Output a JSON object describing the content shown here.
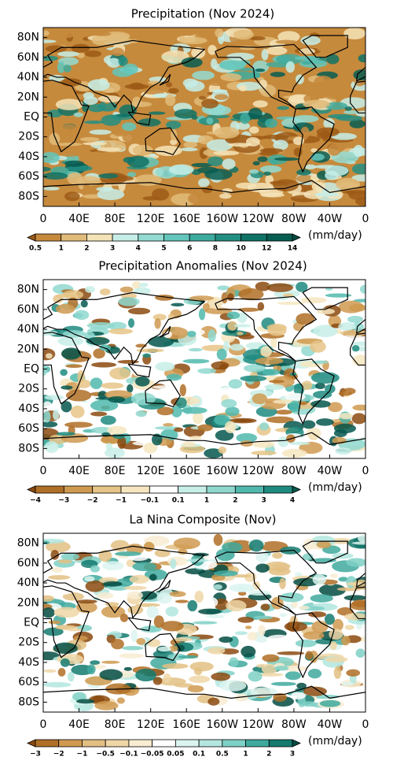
{
  "axes": {
    "lat_labels": [
      "80N",
      "60N",
      "40N",
      "20N",
      "EQ",
      "20S",
      "40S",
      "60S",
      "80S"
    ],
    "lon_labels": [
      "0",
      "40E",
      "80E",
      "120E",
      "160E",
      "160W",
      "120W",
      "80W",
      "40W",
      "0"
    ],
    "units": "(mm/day)"
  },
  "panels": [
    {
      "title": "Precipitation (Nov 2024)",
      "colorbar_labels": [
        "0.5",
        "1",
        "2",
        "3",
        "4",
        "5",
        "6",
        "8",
        "10",
        "12",
        "14"
      ],
      "colorbar_colors": [
        "#9c5a16",
        "#c68a3d",
        "#e0bb79",
        "#f4e3b7",
        "#c6ede7",
        "#93dbd2",
        "#63c5bb",
        "#3eab9f",
        "#238e82",
        "#117266",
        "#075d52",
        "#024b41"
      ]
    },
    {
      "title": "Precipitation Anomalies (Nov 2024)",
      "colorbar_labels": [
        "−4",
        "−3",
        "−2",
        "−1",
        "−0.1",
        "0.1",
        "1",
        "2",
        "3",
        "4"
      ],
      "colorbar_colors": [
        "#8b4a0f",
        "#b06f26",
        "#cf9a50",
        "#e6c487",
        "#f6e6c0",
        "#ffffff",
        "#c8eee8",
        "#8fd8cf",
        "#50b8ad",
        "#1f8b80",
        "#05574d"
      ]
    },
    {
      "title": "La Nina Composite (Nov)",
      "colorbar_labels": [
        "−3",
        "−2",
        "−1",
        "−0.5",
        "−0.1",
        "−0.05",
        "0.05",
        "0.1",
        "0.5",
        "1",
        "2",
        "3"
      ],
      "colorbar_colors": [
        "#8b4a0f",
        "#b06f26",
        "#cf9a50",
        "#e2bf83",
        "#efd6a6",
        "#f8ecd2",
        "#ffffff",
        "#dcf4f0",
        "#b3e6df",
        "#7fd0c6",
        "#3fa99d",
        "#147a6e",
        "#044c42"
      ]
    }
  ]
}
